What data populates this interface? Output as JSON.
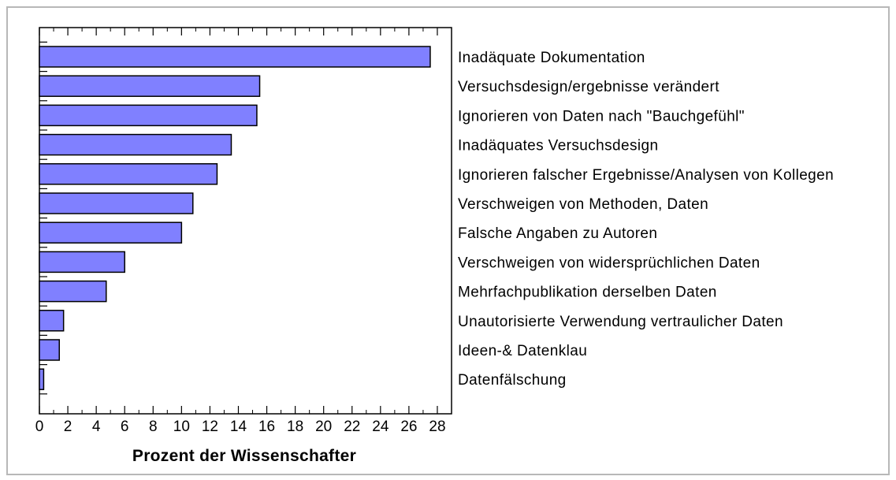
{
  "colors": {
    "bar_fill": "#8080ff",
    "bar_stroke": "#000000",
    "axis": "#000000",
    "frame_border": "#b8b8b8"
  },
  "chart_data": {
    "type": "bar",
    "orientation": "horizontal",
    "title": "",
    "xlabel": "Prozent der Wissenschafter",
    "ylabel": "",
    "xlim": [
      0,
      29
    ],
    "x_ticks": [
      0,
      2,
      4,
      6,
      8,
      10,
      12,
      14,
      16,
      18,
      20,
      22,
      24,
      26,
      28
    ],
    "grid": false,
    "categories": [
      "Inadäquate Dokumentation",
      "Versuchsdesign/ergebnisse verändert",
      "Ignorieren von Daten nach \"Bauchgefühl\"",
      "Inadäquates Versuchsdesign",
      "Ignorieren falscher Ergebnisse/Analysen von Kollegen",
      "Verschweigen von Methoden, Daten",
      "Falsche Angaben zu Autoren",
      "Verschweigen von widersprüchlichen Daten",
      "Mehrfachpublikation derselben Daten",
      "Unautorisierte Verwendung vertraulicher Daten",
      "Ideen-& Datenklau",
      "Datenfälschung"
    ],
    "values": [
      27.5,
      15.5,
      15.3,
      13.5,
      12.5,
      10.8,
      10.0,
      6.0,
      4.7,
      1.7,
      1.4,
      0.3
    ]
  }
}
